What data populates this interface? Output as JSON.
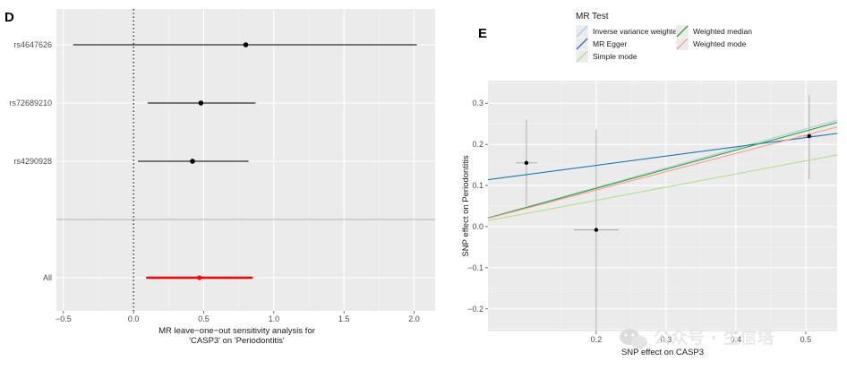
{
  "chart_data": [
    {
      "panel_label": "D",
      "type": "forest",
      "xlabel_lines": [
        "MR leave−one−out sensitivity analysis for",
        "'CASP3' on 'Periodontitis'"
      ],
      "xlim": [
        -0.55,
        2.15
      ],
      "x_ticks": [
        -0.5,
        0.0,
        0.5,
        1.0,
        1.5,
        2.0
      ],
      "x_tick_labels": [
        "−0.5",
        "0.0",
        "0.5",
        "1.0",
        "1.5",
        "2.0"
      ],
      "reference_line": 0,
      "rows": [
        {
          "label": "rs4647626",
          "estimate": 0.8,
          "lower": -0.43,
          "upper": 2.02,
          "color": "#000000"
        },
        {
          "label": "rs72689210",
          "estimate": 0.48,
          "lower": 0.1,
          "upper": 0.87,
          "color": "#000000"
        },
        {
          "label": "rs4290928",
          "estimate": 0.42,
          "lower": 0.03,
          "upper": 0.82,
          "color": "#000000"
        },
        {
          "label": "All",
          "estimate": 0.47,
          "lower": 0.09,
          "upper": 0.85,
          "color": "#ff0000"
        }
      ]
    },
    {
      "panel_label": "E",
      "type": "scatter",
      "xlabel": "SNP effect on CASP3",
      "ylabel": "SNP effect on Periodontitis",
      "xlim": [
        0.045,
        0.545
      ],
      "ylim": [
        -0.255,
        0.355
      ],
      "x_ticks": [
        0.2,
        0.3,
        0.4,
        0.5
      ],
      "x_tick_labels": [
        "0.2",
        "0.3",
        "0.4",
        "0.5"
      ],
      "y_ticks": [
        -0.2,
        -0.1,
        0.0,
        0.1,
        0.2,
        0.3
      ],
      "y_tick_labels": [
        "−0.2",
        "−0.1",
        "0.0",
        "0.1",
        "0.2",
        "0.3"
      ],
      "points": [
        {
          "x": 0.1,
          "y": 0.155,
          "x_lower": 0.085,
          "x_upper": 0.115,
          "y_lower": 0.05,
          "y_upper": 0.26
        },
        {
          "x": 0.2,
          "y": -0.008,
          "x_lower": 0.168,
          "x_upper": 0.232,
          "y_lower": -0.255,
          "y_upper": 0.236
        },
        {
          "x": 0.505,
          "y": 0.22,
          "x_lower": 0.49,
          "x_upper": 0.52,
          "y_lower": 0.115,
          "y_upper": 0.32
        }
      ],
      "legend": {
        "title": "MR Test",
        "placement": "top",
        "entries": [
          {
            "name": "Inverse variance weighted",
            "color": "#a6cee3"
          },
          {
            "name": "MR Egger",
            "color": "#1f78b4"
          },
          {
            "name": "Simple mode",
            "color": "#b2df8a"
          },
          {
            "name": "Weighted median",
            "color": "#33a02c"
          },
          {
            "name": "Weighted mode",
            "color": "#fb9a99"
          }
        ]
      },
      "lines": [
        {
          "method": "Inverse variance weighted",
          "intercept": 0.0,
          "slope": 0.475,
          "color": "#a6cee3"
        },
        {
          "method": "MR Egger",
          "intercept": 0.104,
          "slope": 0.225,
          "color": "#1f78b4"
        },
        {
          "method": "Simple mode",
          "intercept": 0.0,
          "slope": 0.32,
          "color": "#b2df8a"
        },
        {
          "method": "Weighted median",
          "intercept": 0.0,
          "slope": 0.465,
          "color": "#33a02c"
        },
        {
          "method": "Weighted mode",
          "intercept": 0.0,
          "slope": 0.445,
          "color": "#fb9a99"
        }
      ]
    }
  ],
  "watermark": {
    "text": "公众号 · 生信塔",
    "icon": "wechat-icon"
  }
}
